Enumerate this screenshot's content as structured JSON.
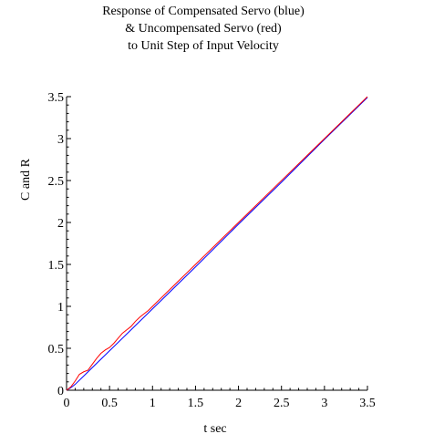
{
  "chart_data": {
    "type": "line",
    "title_lines": [
      "Response of Compensated Servo (blue)",
      "& Uncompensated Servo (red)",
      "to Unit Step of Input Velocity"
    ],
    "xlabel": "t sec",
    "ylabel": "C and R",
    "xlim": [
      0,
      3.5
    ],
    "ylim": [
      0,
      3.5
    ],
    "xticks": [
      "0",
      "0.5",
      "1",
      "1.5",
      "2",
      "2.5",
      "3",
      "3.5"
    ],
    "yticks": [
      "0",
      "0.5",
      "1",
      "1.5",
      "2",
      "2.5",
      "3",
      "3.5"
    ],
    "grid": false,
    "series": [
      {
        "color": "#0000ff",
        "x": [
          0,
          0.05,
          0.1,
          0.2,
          0.3,
          0.5,
          1.0,
          1.5,
          2.0,
          2.5,
          3.0,
          3.5
        ],
        "y": [
          0,
          0.03,
          0.07,
          0.17,
          0.27,
          0.47,
          0.97,
          1.47,
          1.98,
          2.48,
          2.99,
          3.49
        ]
      },
      {
        "color": "#ff0000",
        "x": [
          0,
          0.05,
          0.1,
          0.15,
          0.2,
          0.25,
          0.3,
          0.35,
          0.4,
          0.45,
          0.5,
          0.55,
          0.6,
          0.65,
          0.7,
          0.75,
          0.8,
          0.85,
          0.9,
          0.95,
          1.0,
          1.1,
          1.2,
          1.3,
          1.4,
          1.5,
          1.6,
          1.7,
          1.8,
          1.9,
          2.0,
          2.2,
          2.4,
          2.6,
          2.8,
          3.0,
          3.2,
          3.4,
          3.5
        ],
        "y": [
          0,
          0.04,
          0.11,
          0.19,
          0.22,
          0.24,
          0.31,
          0.38,
          0.44,
          0.48,
          0.51,
          0.56,
          0.62,
          0.68,
          0.72,
          0.76,
          0.82,
          0.87,
          0.91,
          0.95,
          1.0,
          1.1,
          1.2,
          1.3,
          1.4,
          1.5,
          1.6,
          1.7,
          1.8,
          1.9,
          2.0,
          2.2,
          2.4,
          2.6,
          2.8,
          3.0,
          3.2,
          3.4,
          3.5
        ]
      }
    ]
  }
}
